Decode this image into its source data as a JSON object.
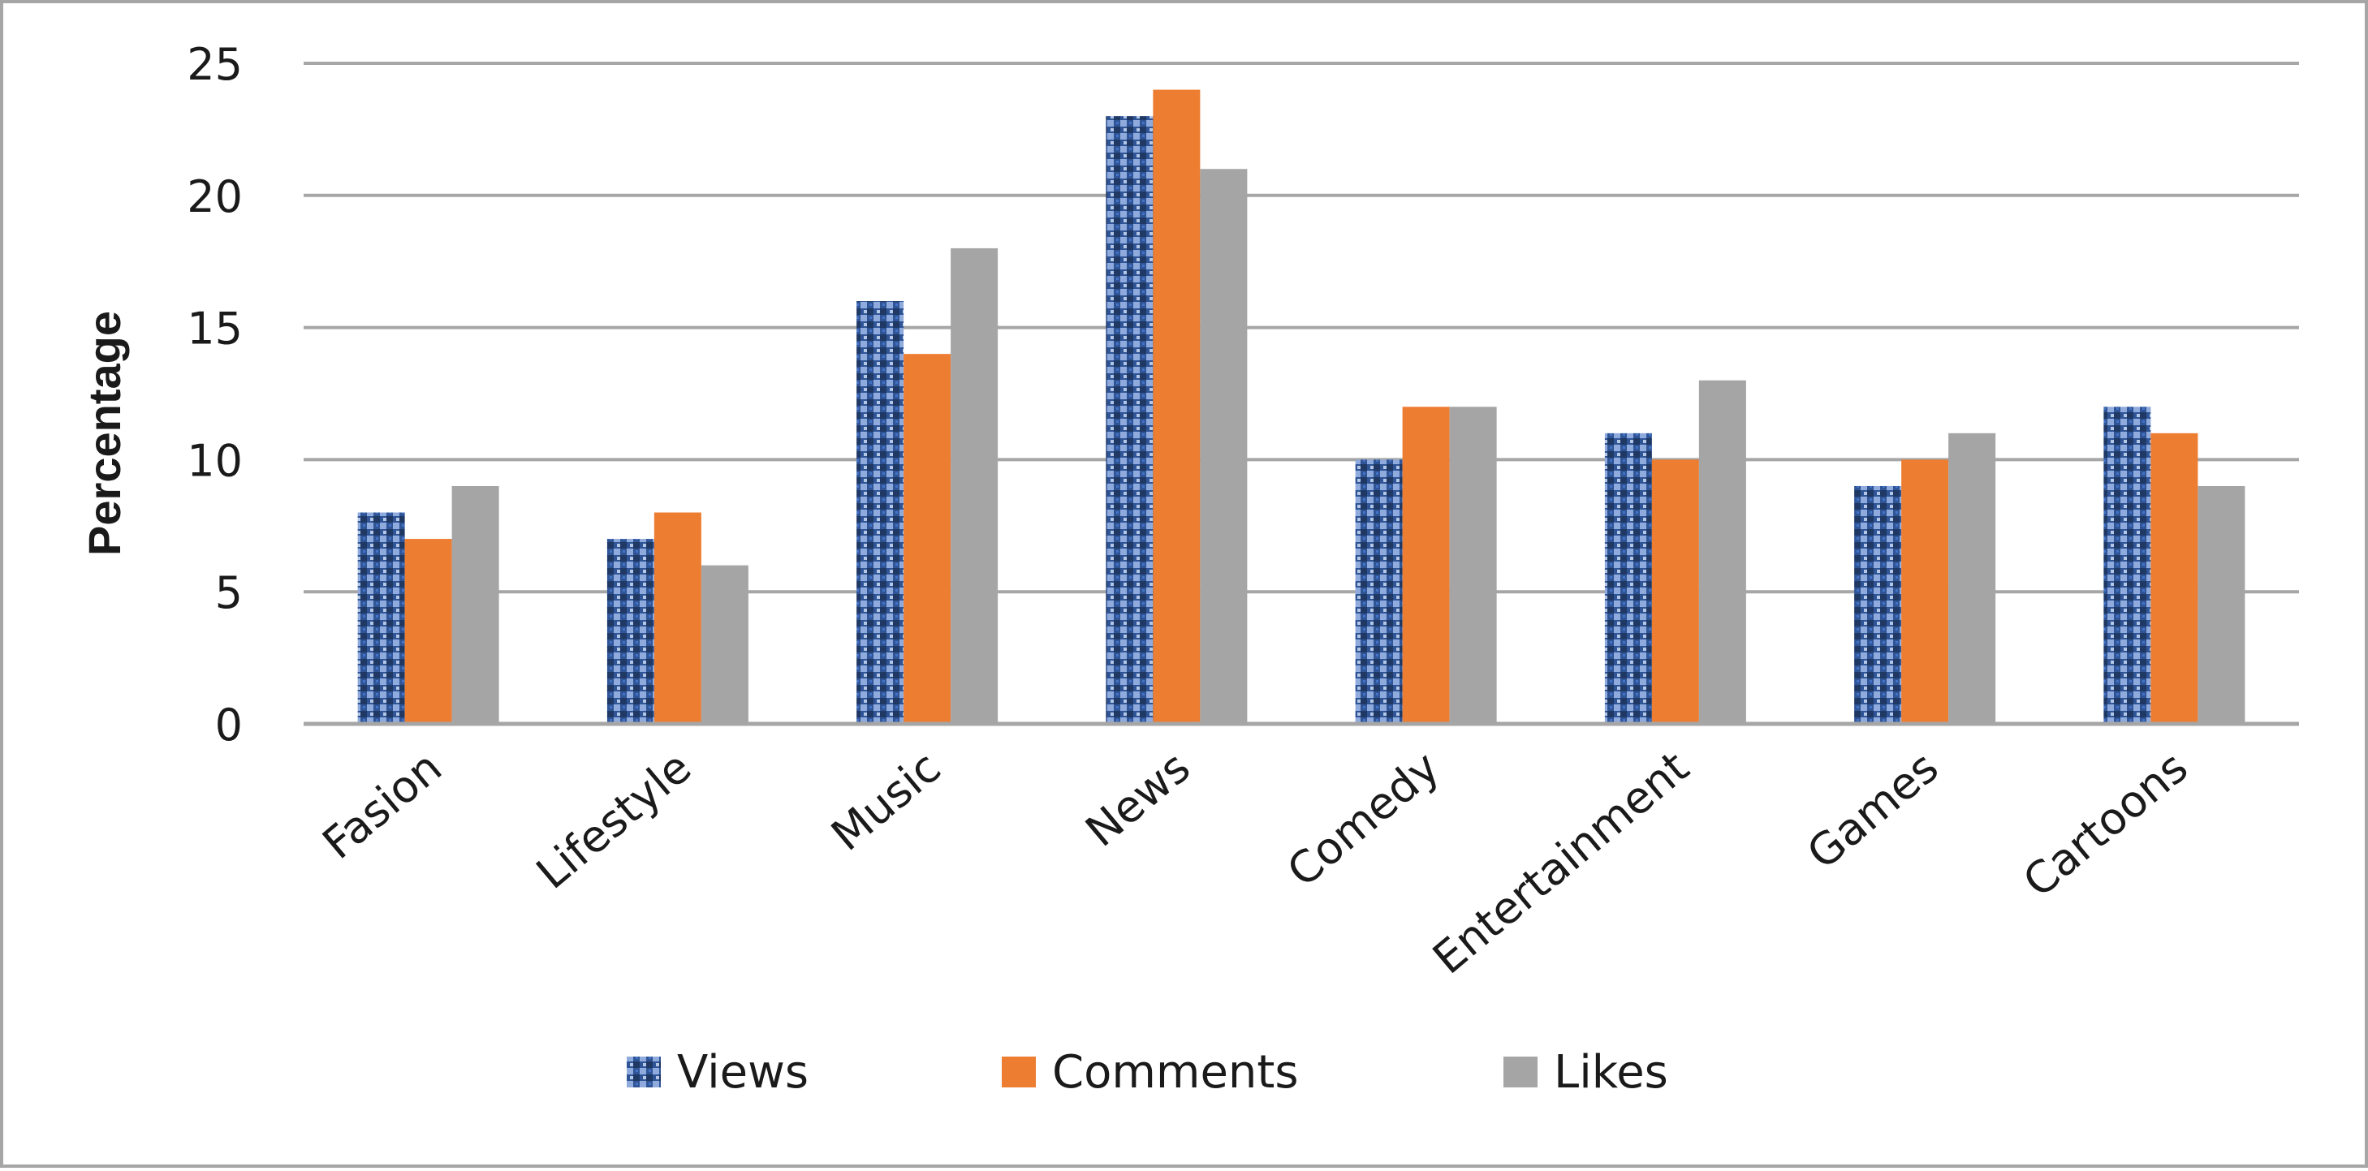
{
  "chart_data": {
    "type": "bar",
    "categories": [
      "Fasion",
      "Lifestyle",
      "Music",
      "News",
      "Comedy",
      "Entertainment",
      "Games",
      "Cartoons"
    ],
    "series": [
      {
        "name": "Views",
        "values": [
          8,
          7,
          16,
          23,
          10,
          11,
          9,
          12
        ],
        "color": "#2f5597",
        "pattern": "checker"
      },
      {
        "name": "Comments",
        "values": [
          7,
          8,
          14,
          24,
          12,
          10,
          10,
          11
        ],
        "color": "#ed7d31"
      },
      {
        "name": "Likes",
        "values": [
          9,
          6,
          18,
          21,
          12,
          13,
          11,
          9
        ],
        "color": "#a5a5a5"
      }
    ],
    "ylabel": "Percentage",
    "ylim": [
      0,
      25
    ],
    "yticks": [
      0,
      5,
      10,
      15,
      20,
      25
    ],
    "grid": true,
    "legend_position": "bottom",
    "gridline_color": "#a6a6a6"
  }
}
